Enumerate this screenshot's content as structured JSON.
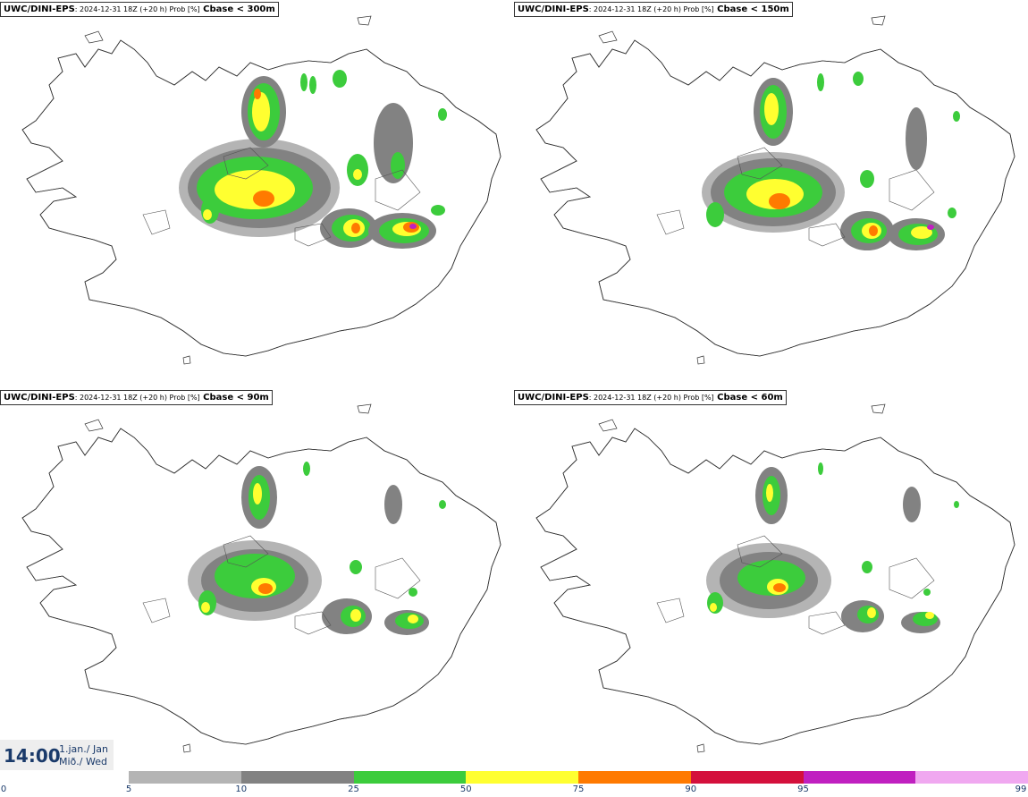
{
  "panels": [
    {
      "source": "UWC/DINI-EPS",
      "meta": ": 2024-12-31 18Z (+20 h) Prob [%]",
      "variable": " Cbase < 300m"
    },
    {
      "source": "UWC/DINI-EPS",
      "meta": ": 2024-12-31 18Z (+20 h) Prob [%]",
      "variable": " Cbase < 150m"
    },
    {
      "source": "UWC/DINI-EPS",
      "meta": ": 2024-12-31 18Z (+20 h) Prob [%]",
      "variable": " Cbase < 90m"
    },
    {
      "source": "UWC/DINI-EPS",
      "meta": ": 2024-12-31 18Z (+20 h) Prob [%]",
      "variable": " Cbase < 60m"
    }
  ],
  "time": {
    "hour": "14:00",
    "date": "1.jan./ Jan",
    "weekday": "Mið./ Wed"
  },
  "colorbar": {
    "ticks": [
      "0",
      "5",
      "10",
      "25",
      "50",
      "75",
      "90",
      "95",
      "99"
    ],
    "colors": [
      "#b4b4b4",
      "#828282",
      "#3ccc3c",
      "#ffff30",
      "#ff7a00",
      "#d4103c",
      "#c020c0",
      "#f0a8f0"
    ]
  }
}
